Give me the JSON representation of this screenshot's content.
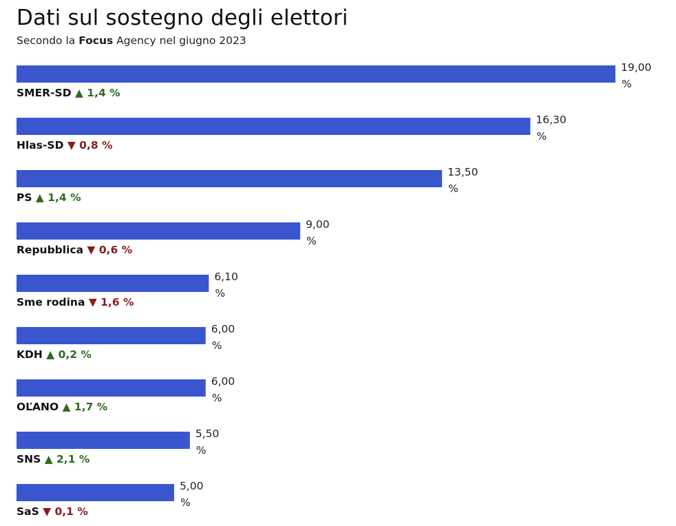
{
  "header": {
    "title": "Dati sul sostegno degli elettori",
    "subtitle_prefix": "Secondo la ",
    "subtitle_bold": "Focus",
    "subtitle_suffix": " Agency nel giugno 2023"
  },
  "colors": {
    "bar": "#3a56cf",
    "up": "#2e6b1f",
    "down": "#8a1c1c"
  },
  "chart_data": {
    "type": "bar",
    "orientation": "horizontal",
    "title": "Dati sul sostegno degli elettori",
    "subtitle": "Secondo la Focus Agency nel giugno 2023",
    "unit": "%",
    "xlim": [
      0,
      19
    ],
    "categories": [
      "SMER-SD",
      "Hlas-SD",
      "PS",
      "Repubblica",
      "Sme rodina",
      "KDH",
      "OĽANO",
      "SNS",
      "SaS"
    ],
    "values": [
      19.0,
      16.3,
      13.5,
      9.0,
      6.1,
      6.0,
      6.0,
      5.5,
      5.0
    ],
    "value_labels": [
      "19,00",
      "16,30",
      "13,50",
      "9,00",
      "6,10",
      "6,00",
      "6,00",
      "5,50",
      "5,00"
    ],
    "changes": [
      {
        "direction": "up",
        "symbol": "▲",
        "text": "1,4 %"
      },
      {
        "direction": "down",
        "symbol": "▼",
        "text": "0,8 %"
      },
      {
        "direction": "up",
        "symbol": "▲",
        "text": "1,4 %"
      },
      {
        "direction": "down",
        "symbol": "▼",
        "text": "0,6 %"
      },
      {
        "direction": "down",
        "symbol": "▼",
        "text": "1,6 %"
      },
      {
        "direction": "up",
        "symbol": "▲",
        "text": "0,2 %"
      },
      {
        "direction": "up",
        "symbol": "▲",
        "text": "1,7 %"
      },
      {
        "direction": "up",
        "symbol": "▲",
        "text": "2,1 %"
      },
      {
        "direction": "down",
        "symbol": "▼",
        "text": "0,1 %"
      }
    ]
  }
}
